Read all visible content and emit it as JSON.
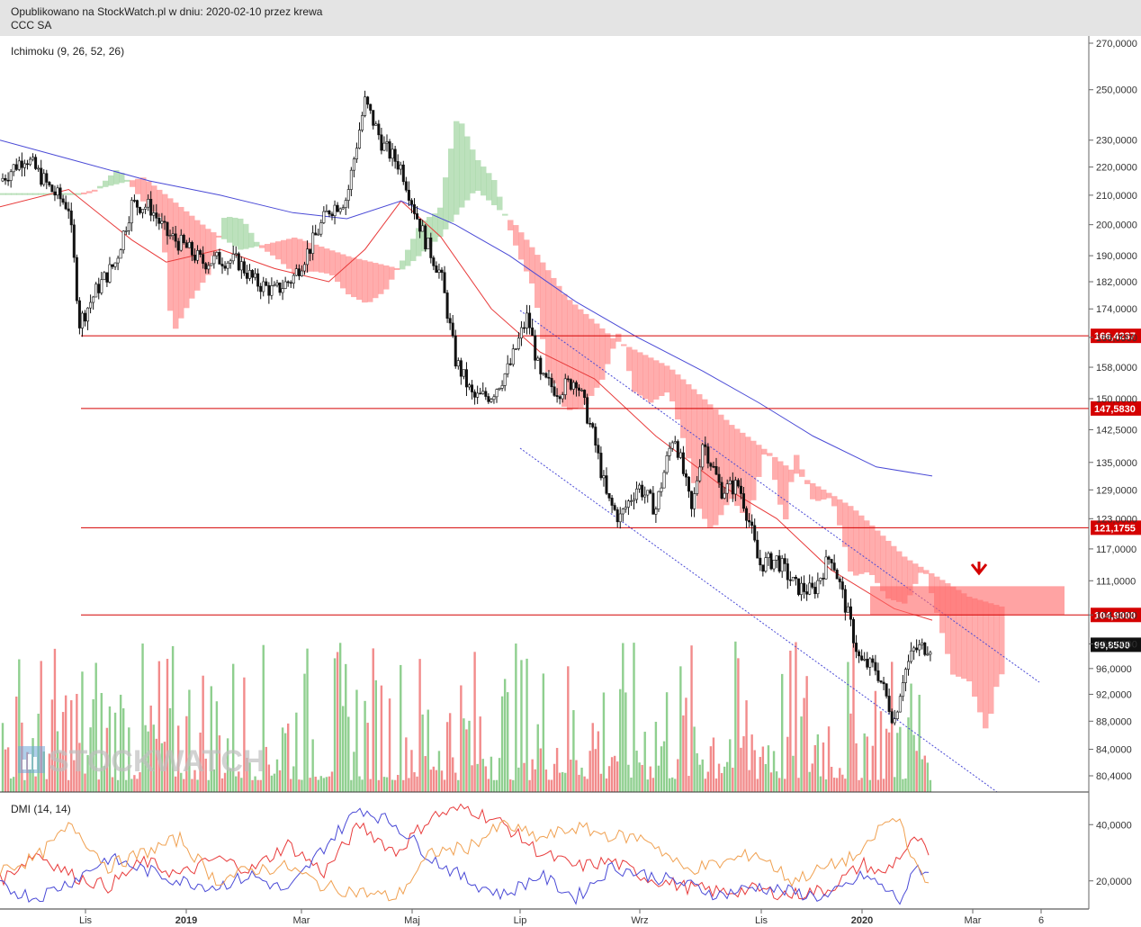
{
  "header": {
    "published": "Opublikowano na StockWatch.pl w dniu: 2020-02-10 przez krewa",
    "company": "CCC SA"
  },
  "watermark": "STOCKWATCH",
  "colors": {
    "up_candle_volume": "#8fcf8f",
    "down_candle_volume": "#f28b8b",
    "cloud_bear": "#ff8a8a",
    "cloud_bull": "#9fd49f",
    "sma_short": "#e83b3b",
    "sma_long": "#4a4ad6",
    "level_line": "#d40000",
    "dmi_adx": "#e83b3b",
    "dmi_plus": "#4a4ad6",
    "dmi_minus": "#f0a050"
  },
  "chart_data": [
    {
      "type": "candlestick",
      "title": "Ichimoku (9, 26, 52, 26)",
      "y_scale": "log",
      "y_ticks": [
        "270,0000",
        "250,0000",
        "230,0000",
        "220,0000",
        "210,0000",
        "200,0000",
        "190,0000",
        "182,0000",
        "174,0000",
        "166,0000",
        "158,0000",
        "150,0000",
        "142,5000",
        "135,0000",
        "129,0000",
        "123,0000",
        "117,0000",
        "111,0000",
        "104,9000",
        "100,0000",
        "96,0000",
        "92,0000",
        "88,0000",
        "84,0000",
        "80,4000"
      ],
      "x_ticks": [
        "Lis",
        "2019",
        "Mar",
        "Maj",
        "Lip",
        "Wrz",
        "Lis",
        "2020",
        "Mar",
        "6"
      ],
      "levels": [
        {
          "value": 166.4237,
          "label": "166,4237"
        },
        {
          "value": 147.583,
          "label": "147,5830"
        },
        {
          "value": 121.1755,
          "label": "121,1755"
        },
        {
          "value": 104.9,
          "label": "104,9000"
        }
      ],
      "last_price": {
        "value": 99.85,
        "label": "99,8500"
      },
      "resistance_zone": {
        "low": 104.9,
        "high": 110.0
      },
      "arrow": "down",
      "close_path": [
        [
          "2018-09-12",
          215
        ],
        [
          "2018-09-26",
          224
        ],
        [
          "2018-10-10",
          212
        ],
        [
          "2018-10-20",
          206
        ],
        [
          "2018-10-26",
          170
        ],
        [
          "2018-11-05",
          180
        ],
        [
          "2018-11-15",
          188
        ],
        [
          "2018-11-24",
          207
        ],
        [
          "2018-12-04",
          206
        ],
        [
          "2018-12-13",
          197
        ],
        [
          "2018-12-23",
          193
        ],
        [
          "2019-01-02",
          188
        ],
        [
          "2019-01-12",
          189
        ],
        [
          "2019-01-22",
          188
        ],
        [
          "2019-01-31",
          182
        ],
        [
          "2019-02-11",
          179
        ],
        [
          "2019-02-21",
          183
        ],
        [
          "2019-03-03",
          193
        ],
        [
          "2019-03-13",
          205
        ],
        [
          "2019-03-23",
          209
        ],
        [
          "2019-04-02",
          245
        ],
        [
          "2019-04-12",
          228
        ],
        [
          "2019-04-22",
          220
        ],
        [
          "2019-04-30",
          204
        ],
        [
          "2019-05-06",
          194
        ],
        [
          "2019-05-14",
          184
        ],
        [
          "2019-05-22",
          160
        ],
        [
          "2019-06-01",
          150
        ],
        [
          "2019-06-11",
          151
        ],
        [
          "2019-06-21",
          158
        ],
        [
          "2019-07-01",
          172
        ],
        [
          "2019-07-08",
          155
        ],
        [
          "2019-07-18",
          152
        ],
        [
          "2019-07-28",
          155
        ],
        [
          "2019-08-07",
          140
        ],
        [
          "2019-08-14",
          127
        ],
        [
          "2019-08-21",
          123
        ],
        [
          "2019-08-31",
          130
        ],
        [
          "2019-09-10",
          125
        ],
        [
          "2019-09-20",
          142
        ],
        [
          "2019-09-30",
          124
        ],
        [
          "2019-10-06",
          140
        ],
        [
          "2019-10-16",
          129
        ],
        [
          "2019-10-26",
          130
        ],
        [
          "2019-11-01",
          122
        ],
        [
          "2019-11-06",
          114
        ],
        [
          "2019-11-16",
          115
        ],
        [
          "2019-11-26",
          110
        ],
        [
          "2019-12-06",
          109
        ],
        [
          "2019-12-16",
          116
        ],
        [
          "2019-12-21",
          110
        ],
        [
          "2020-01-01",
          97
        ],
        [
          "2020-01-10",
          96
        ],
        [
          "2020-01-20",
          88
        ],
        [
          "2020-01-25",
          95
        ],
        [
          "2020-01-31",
          99
        ],
        [
          "2020-02-10",
          99.85
        ]
      ],
      "sma_short": [
        [
          "2018-09-12",
          206
        ],
        [
          "2018-10-20",
          212
        ],
        [
          "2018-11-24",
          195
        ],
        [
          "2018-12-13",
          188
        ],
        [
          "2019-01-12",
          192
        ],
        [
          "2019-02-11",
          186
        ],
        [
          "2019-03-13",
          182
        ],
        [
          "2019-04-02",
          192
        ],
        [
          "2019-04-22",
          208
        ],
        [
          "2019-05-14",
          196
        ],
        [
          "2019-06-11",
          174
        ],
        [
          "2019-07-08",
          162
        ],
        [
          "2019-08-07",
          155
        ],
        [
          "2019-09-10",
          141
        ],
        [
          "2019-10-16",
          130
        ],
        [
          "2019-11-16",
          123
        ],
        [
          "2019-12-16",
          113
        ],
        [
          "2020-01-20",
          106
        ],
        [
          "2020-02-10",
          104
        ]
      ],
      "sma_long": [
        [
          "2018-09-12",
          230
        ],
        [
          "2018-10-20",
          223
        ],
        [
          "2018-12-04",
          215
        ],
        [
          "2019-01-12",
          210
        ],
        [
          "2019-02-21",
          204
        ],
        [
          "2019-03-23",
          202
        ],
        [
          "2019-04-22",
          208
        ],
        [
          "2019-05-22",
          200
        ],
        [
          "2019-06-21",
          190
        ],
        [
          "2019-07-28",
          176
        ],
        [
          "2019-08-31",
          166
        ],
        [
          "2019-10-06",
          157
        ],
        [
          "2019-11-06",
          149
        ],
        [
          "2019-12-06",
          141
        ],
        [
          "2020-01-10",
          134
        ],
        [
          "2020-02-10",
          132
        ]
      ],
      "volume_scale_max": 100
    },
    {
      "type": "line",
      "title": "DMI (14, 14)",
      "y_ticks": [
        "40,0000",
        "20,0000"
      ],
      "ylim": [
        10,
        50
      ],
      "series": [
        {
          "values": [
            [
              0,
              20
            ],
            [
              40,
              30
            ],
            [
              80,
              22
            ],
            [
              120,
              18
            ],
            [
              160,
              27
            ],
            [
              200,
              22
            ],
            [
              240,
              28
            ],
            [
              280,
              24
            ],
            [
              320,
              33
            ],
            [
              360,
              23
            ],
            [
              400,
              40
            ],
            [
              440,
              30
            ],
            [
              480,
              43
            ],
            [
              520,
              46
            ],
            [
              560,
              40
            ],
            [
              600,
              30
            ],
            [
              640,
              25
            ],
            [
              680,
              27
            ],
            [
              720,
              21
            ],
            [
              760,
              18
            ],
            [
              800,
              16
            ],
            [
              840,
              17
            ],
            [
              880,
              15
            ],
            [
              920,
              17
            ],
            [
              960,
              26
            ],
            [
              980,
              22
            ],
            [
              1000,
              29
            ],
            [
              1020,
              35
            ],
            [
              1035,
              27
            ]
          ]
        },
        {
          "values": [
            [
              0,
              18
            ],
            [
              40,
              14
            ],
            [
              80,
              20
            ],
            [
              120,
              28
            ],
            [
              160,
              24
            ],
            [
              200,
              20
            ],
            [
              240,
              18
            ],
            [
              280,
              22
            ],
            [
              320,
              16
            ],
            [
              360,
              32
            ],
            [
              400,
              46
            ],
            [
              440,
              40
            ],
            [
              480,
              28
            ],
            [
              520,
              20
            ],
            [
              560,
              15
            ],
            [
              600,
              22
            ],
            [
              640,
              14
            ],
            [
              680,
              25
            ],
            [
              720,
              22
            ],
            [
              760,
              19
            ],
            [
              800,
              15
            ],
            [
              840,
              18
            ],
            [
              880,
              16
            ],
            [
              920,
              14
            ],
            [
              960,
              22
            ],
            [
              980,
              18
            ],
            [
              1000,
              13
            ],
            [
              1020,
              25
            ],
            [
              1035,
              22
            ]
          ]
        },
        {
          "values": [
            [
              0,
              24
            ],
            [
              40,
              28
            ],
            [
              80,
              40
            ],
            [
              120,
              25
            ],
            [
              160,
              30
            ],
            [
              200,
              35
            ],
            [
              240,
              20
            ],
            [
              280,
              24
            ],
            [
              320,
              25
            ],
            [
              360,
              18
            ],
            [
              400,
              16
            ],
            [
              440,
              14
            ],
            [
              480,
              30
            ],
            [
              520,
              32
            ],
            [
              560,
              40
            ],
            [
              600,
              35
            ],
            [
              640,
              39
            ],
            [
              680,
              36
            ],
            [
              720,
              35
            ],
            [
              760,
              24
            ],
            [
              800,
              26
            ],
            [
              840,
              30
            ],
            [
              880,
              20
            ],
            [
              920,
              25
            ],
            [
              960,
              30
            ],
            [
              980,
              40
            ],
            [
              1000,
              42
            ],
            [
              1020,
              23
            ],
            [
              1035,
              18
            ]
          ]
        }
      ]
    }
  ]
}
